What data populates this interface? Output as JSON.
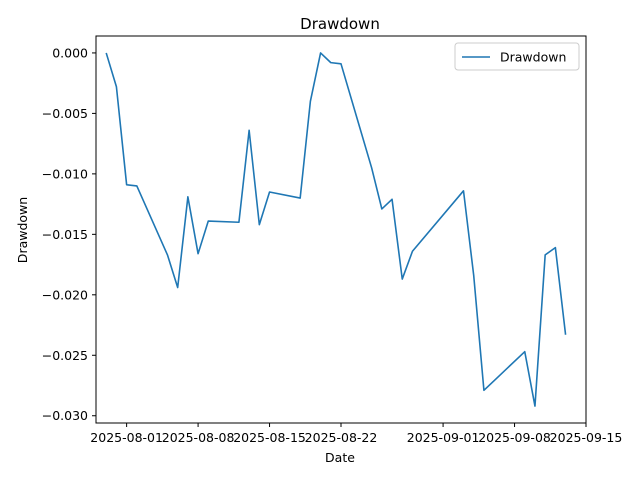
{
  "chart_data": {
    "type": "line",
    "title": "Drawdown",
    "xlabel": "Date",
    "ylabel": "Drawdown",
    "x_scale": "date",
    "xlim": [
      "2025-07-29",
      "2025-09-15"
    ],
    "ylim": [
      -0.0306,
      0.0014
    ],
    "x_ticks": [
      "2025-08-01",
      "2025-08-08",
      "2025-08-15",
      "2025-08-22",
      "2025-09-01",
      "2025-09-08",
      "2025-09-15"
    ],
    "x_tick_labels": [
      "2025-08-01",
      "2025-08-08",
      "2025-08-15",
      "2025-08-22",
      "2025-09-01",
      "2025-09-08",
      "2025-09-15"
    ],
    "y_ticks": [
      0.0,
      -0.005,
      -0.01,
      -0.015,
      -0.02,
      -0.025,
      -0.03
    ],
    "y_tick_labels": [
      "0.000",
      "−0.005",
      "−0.010",
      "−0.015",
      "−0.020",
      "−0.025",
      "−0.030"
    ],
    "grid": false,
    "legend_position": "top-right",
    "series": [
      {
        "name": "Drawdown",
        "color": "#1f77b4",
        "x": [
          "2025-07-30",
          "2025-07-31",
          "2025-08-01",
          "2025-08-02",
          "2025-08-05",
          "2025-08-06",
          "2025-08-07",
          "2025-08-08",
          "2025-08-09",
          "2025-08-12",
          "2025-08-13",
          "2025-08-14",
          "2025-08-15",
          "2025-08-18",
          "2025-08-19",
          "2025-08-20",
          "2025-08-21",
          "2025-08-22",
          "2025-08-25",
          "2025-08-26",
          "2025-08-27",
          "2025-08-28",
          "2025-08-29",
          "2025-09-03",
          "2025-09-04",
          "2025-09-05",
          "2025-09-06",
          "2025-09-09",
          "2025-09-10",
          "2025-09-11",
          "2025-09-12",
          "2025-09-13"
        ],
        "y": [
          0.0,
          -0.0028,
          -0.0109,
          -0.011,
          -0.0167,
          -0.0194,
          -0.0119,
          -0.0166,
          -0.0139,
          -0.014,
          -0.0064,
          -0.0142,
          -0.0115,
          -0.012,
          -0.004,
          0.0,
          -0.0008,
          -0.0009,
          -0.0095,
          -0.0129,
          -0.0121,
          -0.0187,
          -0.0164,
          -0.0114,
          -0.0184,
          -0.0279,
          -0.0271,
          -0.0247,
          -0.0292,
          -0.0167,
          -0.0161,
          -0.0233
        ]
      }
    ]
  }
}
